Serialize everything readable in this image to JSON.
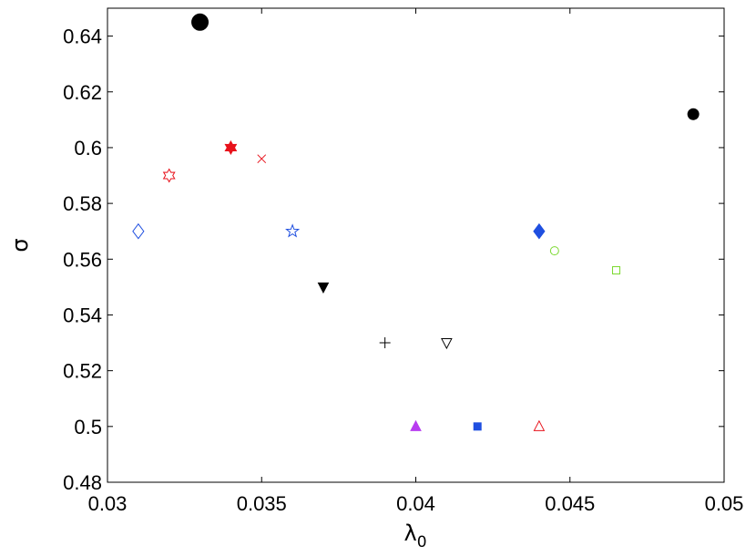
{
  "chart_data": {
    "type": "scatter",
    "title": "",
    "xlabel": "λ",
    "xlabel_subscript": "0",
    "ylabel": "σ",
    "xlim": [
      0.03,
      0.05
    ],
    "ylim": [
      0.48,
      0.65
    ],
    "xticks": [
      0.03,
      0.035,
      0.04,
      0.045,
      0.05
    ],
    "xtick_labels": [
      "0.03",
      "0.035",
      "0.04",
      "0.045",
      "0.05"
    ],
    "yticks": [
      0.48,
      0.5,
      0.52,
      0.54,
      0.56,
      0.58,
      0.6,
      0.62,
      0.64
    ],
    "ytick_labels": [
      "0.48",
      "0.5",
      "0.52",
      "0.54",
      "0.56",
      "0.58",
      "0.6",
      "0.62",
      "0.64"
    ],
    "grid": false,
    "legend": "none",
    "points": [
      {
        "x": 0.033,
        "y": 0.645,
        "marker": "circle-large",
        "color": "#000000",
        "filled": true
      },
      {
        "x": 0.049,
        "y": 0.612,
        "marker": "circle",
        "color": "#000000",
        "filled": true
      },
      {
        "x": 0.034,
        "y": 0.6,
        "marker": "hexagram",
        "color": "#e8121b",
        "filled": true
      },
      {
        "x": 0.035,
        "y": 0.596,
        "marker": "x",
        "color": "#e8121b",
        "filled": false
      },
      {
        "x": 0.032,
        "y": 0.59,
        "marker": "hexagram",
        "color": "#e8121b",
        "filled": false
      },
      {
        "x": 0.031,
        "y": 0.57,
        "marker": "diamond",
        "color": "#1f4fe0",
        "filled": false
      },
      {
        "x": 0.036,
        "y": 0.57,
        "marker": "star",
        "color": "#1f4fe0",
        "filled": false
      },
      {
        "x": 0.044,
        "y": 0.57,
        "marker": "diamond",
        "color": "#1f4fe0",
        "filled": true
      },
      {
        "x": 0.0445,
        "y": 0.563,
        "marker": "circle",
        "color": "#7ad92e",
        "filled": false
      },
      {
        "x": 0.0465,
        "y": 0.556,
        "marker": "square",
        "color": "#7ad92e",
        "filled": false
      },
      {
        "x": 0.037,
        "y": 0.55,
        "marker": "triangle-down",
        "color": "#000000",
        "filled": true
      },
      {
        "x": 0.039,
        "y": 0.53,
        "marker": "plus",
        "color": "#000000",
        "filled": false
      },
      {
        "x": 0.041,
        "y": 0.53,
        "marker": "triangle-down",
        "color": "#000000",
        "filled": false
      },
      {
        "x": 0.04,
        "y": 0.5,
        "marker": "triangle-up",
        "color": "#b83cf0",
        "filled": true
      },
      {
        "x": 0.042,
        "y": 0.5,
        "marker": "square",
        "color": "#1f4fe0",
        "filled": true
      },
      {
        "x": 0.044,
        "y": 0.5,
        "marker": "triangle-up",
        "color": "#e8121b",
        "filled": false
      }
    ]
  }
}
